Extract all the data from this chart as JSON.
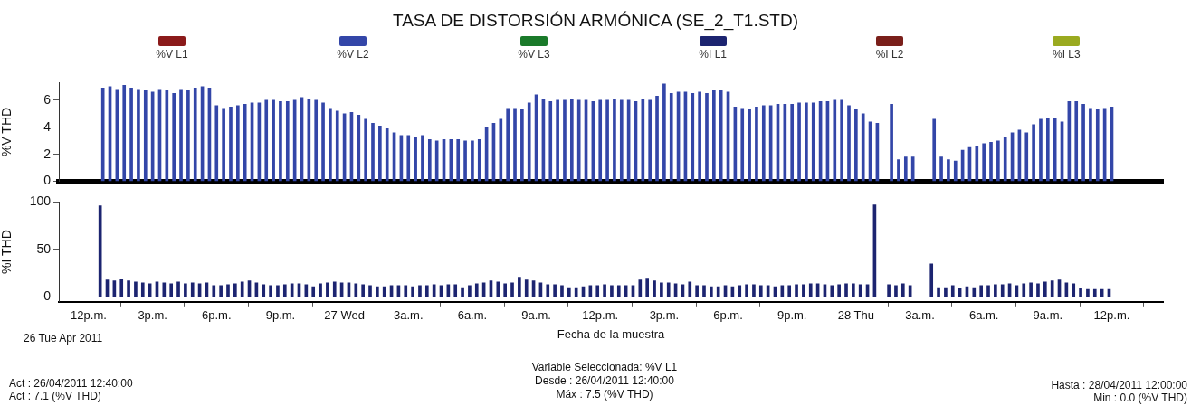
{
  "chart_data": [
    {
      "type": "bar",
      "title": "TASA DE DISTORSIÓN ARMÓNICA (SE_2_T1.STD)",
      "ylabel": "%V THD",
      "legend": "top",
      "tick_labels": "y",
      "xlim": [
        "2011-04-26T10:36",
        "2011-04-28T14:24"
      ],
      "xticks": [
        {
          "value": "2011-04-26T12:00",
          "label": null
        },
        {
          "value": "2011-04-26T15:00",
          "label": null
        },
        {
          "value": "2011-04-26T18:00",
          "label": null
        },
        {
          "value": "2011-04-26T21:00",
          "label": null
        },
        {
          "value": "2011-04-27T00:00",
          "label": null
        },
        {
          "value": "2011-04-27T03:00",
          "label": null
        },
        {
          "value": "2011-04-27T06:00",
          "label": null
        },
        {
          "value": "2011-04-27T09:00",
          "label": null
        },
        {
          "value": "2011-04-27T12:00",
          "label": null
        },
        {
          "value": "2011-04-27T15:00",
          "label": null
        },
        {
          "value": "2011-04-27T18:00",
          "label": null
        },
        {
          "value": "2011-04-27T21:00",
          "label": null
        },
        {
          "value": "2011-04-28T00:00",
          "label": null
        },
        {
          "value": "2011-04-28T03:00",
          "label": null
        },
        {
          "value": "2011-04-28T06:00",
          "label": null
        },
        {
          "value": "2011-04-28T09:00",
          "label": null
        },
        {
          "value": "2011-04-28T12:00",
          "label": null
        }
      ],
      "ylim": [
        0,
        7.3
      ],
      "yticks": [
        0,
        2,
        4,
        6
      ],
      "x": [
        "2011-04-26T12:40",
        "2011-04-26T13:00",
        "2011-04-26T13:20",
        "2011-04-26T13:40",
        "2011-04-26T14:00",
        "2011-04-26T14:20",
        "2011-04-26T14:40",
        "2011-04-26T15:00",
        "2011-04-26T15:20",
        "2011-04-26T15:40",
        "2011-04-26T16:00",
        "2011-04-26T16:20",
        "2011-04-26T16:40",
        "2011-04-26T17:00",
        "2011-04-26T17:20",
        "2011-04-26T17:40",
        "2011-04-26T18:00",
        "2011-04-26T18:20",
        "2011-04-26T18:40",
        "2011-04-26T19:00",
        "2011-04-26T19:20",
        "2011-04-26T19:40",
        "2011-04-26T20:00",
        "2011-04-26T20:20",
        "2011-04-26T20:40",
        "2011-04-26T21:00",
        "2011-04-26T21:20",
        "2011-04-26T21:40",
        "2011-04-26T22:00",
        "2011-04-26T22:20",
        "2011-04-26T22:40",
        "2011-04-26T23:00",
        "2011-04-26T23:20",
        "2011-04-26T23:40",
        "2011-04-27T00:00",
        "2011-04-27T00:20",
        "2011-04-27T00:40",
        "2011-04-27T01:00",
        "2011-04-27T01:20",
        "2011-04-27T01:40",
        "2011-04-27T02:00",
        "2011-04-27T02:20",
        "2011-04-27T02:40",
        "2011-04-27T03:00",
        "2011-04-27T03:20",
        "2011-04-27T03:40",
        "2011-04-27T04:00",
        "2011-04-27T04:20",
        "2011-04-27T04:40",
        "2011-04-27T05:00",
        "2011-04-27T05:20",
        "2011-04-27T05:40",
        "2011-04-27T06:00",
        "2011-04-27T06:20",
        "2011-04-27T06:40",
        "2011-04-27T07:00",
        "2011-04-27T07:20",
        "2011-04-27T07:40",
        "2011-04-27T08:00",
        "2011-04-27T08:20",
        "2011-04-27T08:40",
        "2011-04-27T09:00",
        "2011-04-27T09:20",
        "2011-04-27T09:40",
        "2011-04-27T10:00",
        "2011-04-27T10:20",
        "2011-04-27T10:40",
        "2011-04-27T11:00",
        "2011-04-27T11:20",
        "2011-04-27T11:40",
        "2011-04-27T12:00",
        "2011-04-27T12:20",
        "2011-04-27T12:40",
        "2011-04-27T13:00",
        "2011-04-27T13:20",
        "2011-04-27T13:40",
        "2011-04-27T14:00",
        "2011-04-27T14:20",
        "2011-04-27T14:40",
        "2011-04-27T15:00",
        "2011-04-27T15:20",
        "2011-04-27T15:40",
        "2011-04-27T16:00",
        "2011-04-27T16:20",
        "2011-04-27T16:40",
        "2011-04-27T17:00",
        "2011-04-27T17:20",
        "2011-04-27T17:40",
        "2011-04-27T18:00",
        "2011-04-27T18:20",
        "2011-04-27T18:40",
        "2011-04-27T19:00",
        "2011-04-27T19:20",
        "2011-04-27T19:40",
        "2011-04-27T20:00",
        "2011-04-27T20:20",
        "2011-04-27T20:40",
        "2011-04-27T21:00",
        "2011-04-27T21:20",
        "2011-04-27T21:40",
        "2011-04-27T22:00",
        "2011-04-27T22:20",
        "2011-04-27T22:40",
        "2011-04-27T23:00",
        "2011-04-27T23:20",
        "2011-04-27T23:40",
        "2011-04-28T00:00",
        "2011-04-28T00:20",
        "2011-04-28T00:40",
        "2011-04-28T01:00",
        "2011-04-28T01:20",
        "2011-04-28T01:40",
        "2011-04-28T02:00",
        "2011-04-28T02:20",
        "2011-04-28T02:40",
        "2011-04-28T03:00",
        "2011-04-28T03:20",
        "2011-04-28T03:40",
        "2011-04-28T04:00",
        "2011-04-28T04:20",
        "2011-04-28T04:40",
        "2011-04-28T05:00",
        "2011-04-28T05:20",
        "2011-04-28T05:40",
        "2011-04-28T06:00",
        "2011-04-28T06:20",
        "2011-04-28T06:40",
        "2011-04-28T07:00",
        "2011-04-28T07:20",
        "2011-04-28T07:40",
        "2011-04-28T08:00",
        "2011-04-28T08:20",
        "2011-04-28T08:40",
        "2011-04-28T09:00",
        "2011-04-28T09:20",
        "2011-04-28T09:40",
        "2011-04-28T10:00",
        "2011-04-28T10:20",
        "2011-04-28T10:40",
        "2011-04-28T11:00",
        "2011-04-28T11:20",
        "2011-04-28T11:40",
        "2011-04-28T12:00"
      ],
      "series": [
        {
          "name": "%V L1",
          "color": "#8b1a1a",
          "values": [
            null,
            null,
            null,
            null,
            null,
            null,
            null,
            null,
            null,
            null,
            null,
            null,
            null,
            null,
            null,
            null,
            null,
            null,
            null,
            null,
            null,
            null,
            null,
            null,
            null,
            null,
            null,
            null,
            null,
            null,
            null,
            null,
            null,
            null,
            null,
            null,
            null,
            null,
            null,
            null,
            null,
            null,
            null,
            null,
            null,
            null,
            null,
            null,
            null,
            null,
            null,
            null,
            null,
            null,
            null,
            null,
            null,
            null,
            null,
            null,
            null,
            null,
            null,
            null,
            null,
            null,
            null,
            null,
            null,
            null,
            null,
            null,
            null,
            null,
            null,
            null,
            null,
            null,
            null,
            null,
            null,
            null,
            null,
            null,
            null,
            null,
            null,
            null,
            null,
            null,
            null,
            null,
            null,
            null,
            null,
            null,
            null,
            null,
            null,
            null,
            null,
            null,
            null,
            null,
            null,
            null,
            null,
            null,
            null,
            null,
            null,
            null,
            null,
            null,
            null,
            null,
            null,
            null,
            null,
            null,
            null,
            null,
            null,
            null,
            null,
            null,
            null,
            null,
            null,
            null,
            null,
            null,
            null,
            null,
            null,
            null,
            null,
            null,
            null,
            null,
            null,
            null,
            null
          ]
        },
        {
          "name": "%V L2",
          "color": "#3346a8",
          "values": [
            6.9,
            7.0,
            6.8,
            7.1,
            6.9,
            6.8,
            6.7,
            6.6,
            6.8,
            6.7,
            6.5,
            6.8,
            6.7,
            6.9,
            7.0,
            6.9,
            5.6,
            5.4,
            5.5,
            5.6,
            5.7,
            5.8,
            5.8,
            6.0,
            6.0,
            5.9,
            5.9,
            6.0,
            6.2,
            6.1,
            6.0,
            5.8,
            5.4,
            5.2,
            5.0,
            5.1,
            4.9,
            4.6,
            4.3,
            4.1,
            3.9,
            3.6,
            3.4,
            3.4,
            3.3,
            3.4,
            3.1,
            3.0,
            3.1,
            3.1,
            3.1,
            3.0,
            3.0,
            3.1,
            4.0,
            4.3,
            4.6,
            5.4,
            5.4,
            5.3,
            5.8,
            6.4,
            6.1,
            5.9,
            6.0,
            6.0,
            6.1,
            6.0,
            6.0,
            5.9,
            6.0,
            6.0,
            6.1,
            6.0,
            6.0,
            5.9,
            6.1,
            6.0,
            6.3,
            7.2,
            6.5,
            6.6,
            6.6,
            6.5,
            6.6,
            6.5,
            6.7,
            6.7,
            6.6,
            5.5,
            5.4,
            5.3,
            5.5,
            5.6,
            5.6,
            5.7,
            5.7,
            5.7,
            5.8,
            5.8,
            5.8,
            5.9,
            5.9,
            6.0,
            6.0,
            5.6,
            5.3,
            5.0,
            4.4,
            4.3,
            null,
            5.7,
            1.6,
            1.8,
            1.8,
            null,
            null,
            4.6,
            1.8,
            1.6,
            1.5,
            2.3,
            2.5,
            2.6,
            2.8,
            2.9,
            3.0,
            3.3,
            3.6,
            3.8,
            3.6,
            4.2,
            4.6,
            4.7,
            4.7,
            4.4,
            5.9,
            5.9,
            5.7,
            5.4,
            5.3,
            5.4,
            5.5
          ]
        },
        {
          "name": "%V L3",
          "color": "#1a7a2a",
          "values": [
            null,
            null,
            null,
            null,
            null,
            null,
            null,
            null,
            null,
            null,
            null,
            null,
            null,
            null,
            null,
            null,
            null,
            null,
            null,
            null,
            null,
            null,
            null,
            null,
            null,
            null,
            null,
            null,
            null,
            null,
            null,
            null,
            null,
            null,
            null,
            null,
            null,
            null,
            null,
            null,
            null,
            null,
            null,
            null,
            null,
            null,
            null,
            null,
            null,
            null,
            null,
            null,
            null,
            null,
            null,
            null,
            null,
            null,
            null,
            null,
            null,
            null,
            null,
            null,
            null,
            null,
            null,
            null,
            null,
            null,
            null,
            null,
            null,
            null,
            null,
            null,
            null,
            null,
            null,
            null,
            null,
            null,
            null,
            null,
            null,
            null,
            null,
            null,
            null,
            null,
            null,
            null,
            null,
            null,
            null,
            null,
            null,
            null,
            null,
            null,
            null,
            null,
            null,
            null,
            null,
            null,
            null,
            null,
            null,
            null,
            null,
            null,
            null,
            null,
            null,
            null,
            null,
            null,
            null,
            null,
            null,
            null,
            null,
            null,
            null,
            null,
            null,
            null,
            null,
            null,
            null,
            null,
            null,
            null,
            null,
            null,
            null,
            null,
            null,
            null,
            null,
            null,
            null
          ]
        }
      ]
    },
    {
      "type": "bar",
      "xlabel": "Fecha de la muestra",
      "ylabel": "%I THD",
      "legend": "top",
      "xlim": [
        "2011-04-26T10:36",
        "2011-04-28T14:24"
      ],
      "xticks": [
        {
          "value": "2011-04-26T12:00",
          "label": "12p.m."
        },
        {
          "value": "2011-04-26T15:00",
          "label": "3p.m."
        },
        {
          "value": "2011-04-26T18:00",
          "label": "6p.m."
        },
        {
          "value": "2011-04-26T21:00",
          "label": "9p.m."
        },
        {
          "value": "2011-04-27T00:00",
          "label": "27 Wed"
        },
        {
          "value": "2011-04-27T03:00",
          "label": "3a.m."
        },
        {
          "value": "2011-04-27T06:00",
          "label": "6a.m."
        },
        {
          "value": "2011-04-27T09:00",
          "label": "9a.m."
        },
        {
          "value": "2011-04-27T12:00",
          "label": "12p.m."
        },
        {
          "value": "2011-04-27T15:00",
          "label": "3p.m."
        },
        {
          "value": "2011-04-27T18:00",
          "label": "6p.m."
        },
        {
          "value": "2011-04-27T21:00",
          "label": "9p.m."
        },
        {
          "value": "2011-04-28T00:00",
          "label": "28 Thu"
        },
        {
          "value": "2011-04-28T03:00",
          "label": "3a.m."
        },
        {
          "value": "2011-04-28T06:00",
          "label": "6a.m."
        },
        {
          "value": "2011-04-28T09:00",
          "label": "9a.m."
        },
        {
          "value": "2011-04-28T12:00",
          "label": "12p.m."
        }
      ],
      "ylim": [
        -5,
        100
      ],
      "yticks": [
        0,
        50,
        100
      ],
      "x": [
        "2011-04-26T12:40",
        "2011-04-26T13:00",
        "2011-04-26T13:20",
        "2011-04-26T13:40",
        "2011-04-26T14:00",
        "2011-04-26T14:20",
        "2011-04-26T14:40",
        "2011-04-26T15:00",
        "2011-04-26T15:20",
        "2011-04-26T15:40",
        "2011-04-26T16:00",
        "2011-04-26T16:20",
        "2011-04-26T16:40",
        "2011-04-26T17:00",
        "2011-04-26T17:20",
        "2011-04-26T17:40",
        "2011-04-26T18:00",
        "2011-04-26T18:20",
        "2011-04-26T18:40",
        "2011-04-26T19:00",
        "2011-04-26T19:20",
        "2011-04-26T19:40",
        "2011-04-26T20:00",
        "2011-04-26T20:20",
        "2011-04-26T20:40",
        "2011-04-26T21:00",
        "2011-04-26T21:20",
        "2011-04-26T21:40",
        "2011-04-26T22:00",
        "2011-04-26T22:20",
        "2011-04-26T22:40",
        "2011-04-26T23:00",
        "2011-04-26T23:20",
        "2011-04-26T23:40",
        "2011-04-27T00:00",
        "2011-04-27T00:20",
        "2011-04-27T00:40",
        "2011-04-27T01:00",
        "2011-04-27T01:20",
        "2011-04-27T01:40",
        "2011-04-27T02:00",
        "2011-04-27T02:20",
        "2011-04-27T02:40",
        "2011-04-27T03:00",
        "2011-04-27T03:20",
        "2011-04-27T03:40",
        "2011-04-27T04:00",
        "2011-04-27T04:20",
        "2011-04-27T04:40",
        "2011-04-27T05:00",
        "2011-04-27T05:20",
        "2011-04-27T05:40",
        "2011-04-27T06:00",
        "2011-04-27T06:20",
        "2011-04-27T06:40",
        "2011-04-27T07:00",
        "2011-04-27T07:20",
        "2011-04-27T07:40",
        "2011-04-27T08:00",
        "2011-04-27T08:20",
        "2011-04-27T08:40",
        "2011-04-27T09:00",
        "2011-04-27T09:20",
        "2011-04-27T09:40",
        "2011-04-27T10:00",
        "2011-04-27T10:20",
        "2011-04-27T10:40",
        "2011-04-27T11:00",
        "2011-04-27T11:20",
        "2011-04-27T11:40",
        "2011-04-27T12:00",
        "2011-04-27T12:20",
        "2011-04-27T12:40",
        "2011-04-27T13:00",
        "2011-04-27T13:20",
        "2011-04-27T13:40",
        "2011-04-27T14:00",
        "2011-04-27T14:20",
        "2011-04-27T14:40",
        "2011-04-27T15:00",
        "2011-04-27T15:20",
        "2011-04-27T15:40",
        "2011-04-27T16:00",
        "2011-04-27T16:20",
        "2011-04-27T16:40",
        "2011-04-27T17:00",
        "2011-04-27T17:20",
        "2011-04-27T17:40",
        "2011-04-27T18:00",
        "2011-04-27T18:20",
        "2011-04-27T18:40",
        "2011-04-27T19:00",
        "2011-04-27T19:20",
        "2011-04-27T19:40",
        "2011-04-27T20:00",
        "2011-04-27T20:20",
        "2011-04-27T20:40",
        "2011-04-27T21:00",
        "2011-04-27T21:20",
        "2011-04-27T21:40",
        "2011-04-27T22:00",
        "2011-04-27T22:20",
        "2011-04-27T22:40",
        "2011-04-27T23:00",
        "2011-04-27T23:20",
        "2011-04-27T23:40",
        "2011-04-28T00:00",
        "2011-04-28T00:20",
        "2011-04-28T00:40",
        "2011-04-28T01:00",
        "2011-04-28T01:20",
        "2011-04-28T01:40",
        "2011-04-28T02:00",
        "2011-04-28T02:20",
        "2011-04-28T02:40",
        "2011-04-28T03:00",
        "2011-04-28T03:20",
        "2011-04-28T03:40",
        "2011-04-28T04:00",
        "2011-04-28T04:20",
        "2011-04-28T04:40",
        "2011-04-28T05:00",
        "2011-04-28T05:20",
        "2011-04-28T05:40",
        "2011-04-28T06:00",
        "2011-04-28T06:20",
        "2011-04-28T06:40",
        "2011-04-28T07:00",
        "2011-04-28T07:20",
        "2011-04-28T07:40",
        "2011-04-28T08:00",
        "2011-04-28T08:20",
        "2011-04-28T08:40",
        "2011-04-28T09:00",
        "2011-04-28T09:20",
        "2011-04-28T09:40",
        "2011-04-28T10:00",
        "2011-04-28T10:20",
        "2011-04-28T10:40",
        "2011-04-28T11:00",
        "2011-04-28T11:20",
        "2011-04-28T11:40",
        "2011-04-28T12:00"
      ],
      "series": [
        {
          "name": "%I L1",
          "color": "#1c2470",
          "values": [
            96,
            18,
            17,
            19,
            17,
            16,
            15,
            14,
            16,
            15,
            14,
            16,
            14,
            15,
            14,
            15,
            12,
            12,
            13,
            14,
            16,
            17,
            15,
            13,
            12,
            12,
            13,
            14,
            14,
            13,
            11,
            14,
            15,
            16,
            15,
            15,
            14,
            13,
            12,
            11,
            11,
            12,
            12,
            12,
            11,
            12,
            12,
            13,
            12,
            13,
            13,
            10,
            12,
            14,
            15,
            17,
            16,
            14,
            15,
            21,
            18,
            17,
            15,
            13,
            13,
            12,
            10,
            10,
            11,
            12,
            12,
            13,
            12,
            12,
            12,
            12,
            18,
            20,
            17,
            15,
            15,
            14,
            13,
            16,
            12,
            12,
            11,
            11,
            12,
            11,
            12,
            13,
            13,
            12,
            12,
            11,
            12,
            12,
            13,
            13,
            14,
            14,
            13,
            12,
            13,
            14,
            14,
            13,
            13,
            97,
            null,
            13,
            12,
            14,
            12,
            null,
            null,
            35,
            10,
            10,
            12,
            9,
            11,
            10,
            12,
            12,
            13,
            13,
            14,
            12,
            14,
            15,
            14,
            16,
            17,
            18,
            15,
            14,
            9,
            8,
            8,
            8,
            8
          ]
        },
        {
          "name": "%I L2",
          "color": "#7a1f1a",
          "values": [
            null,
            null,
            null,
            null,
            null,
            null,
            null,
            null,
            null,
            null,
            null,
            null,
            null,
            null,
            null,
            null,
            null,
            null,
            null,
            null,
            null,
            null,
            null,
            null,
            null,
            null,
            null,
            null,
            null,
            null,
            null,
            null,
            null,
            null,
            null,
            null,
            null,
            null,
            null,
            null,
            null,
            null,
            null,
            null,
            null,
            null,
            null,
            null,
            null,
            null,
            null,
            null,
            null,
            null,
            null,
            null,
            null,
            null,
            null,
            null,
            null,
            null,
            null,
            null,
            null,
            null,
            null,
            null,
            null,
            null,
            null,
            null,
            null,
            null,
            null,
            null,
            null,
            null,
            null,
            null,
            null,
            null,
            null,
            null,
            null,
            null,
            null,
            null,
            null,
            null,
            null,
            null,
            null,
            null,
            null,
            null,
            null,
            null,
            null,
            null,
            null,
            null,
            null,
            null,
            null,
            null,
            null,
            null,
            null,
            null,
            null,
            null,
            null,
            null,
            null,
            null,
            null,
            null,
            null,
            null,
            null,
            null,
            null,
            null,
            null,
            null,
            null,
            null,
            null,
            null,
            null,
            null,
            null,
            null,
            null,
            null,
            null,
            null,
            null,
            null,
            null,
            null,
            null
          ]
        },
        {
          "name": "%I L3",
          "color": "#9aaa20",
          "values": [
            null,
            null,
            null,
            null,
            null,
            null,
            null,
            null,
            null,
            null,
            null,
            null,
            null,
            null,
            null,
            null,
            null,
            null,
            null,
            null,
            null,
            null,
            null,
            null,
            null,
            null,
            null,
            null,
            null,
            null,
            null,
            null,
            null,
            null,
            null,
            null,
            null,
            null,
            null,
            null,
            null,
            null,
            null,
            null,
            null,
            null,
            null,
            null,
            null,
            null,
            null,
            null,
            null,
            null,
            null,
            null,
            null,
            null,
            null,
            null,
            null,
            null,
            null,
            null,
            null,
            null,
            null,
            null,
            null,
            null,
            null,
            null,
            null,
            null,
            null,
            null,
            null,
            null,
            null,
            null,
            null,
            null,
            null,
            null,
            null,
            null,
            null,
            null,
            null,
            null,
            null,
            null,
            null,
            null,
            null,
            null,
            null,
            null,
            null,
            null,
            null,
            null,
            null,
            null,
            null,
            null,
            null,
            null,
            null,
            null,
            null,
            null,
            null,
            null,
            null,
            null,
            null,
            null,
            null,
            null,
            null,
            null,
            null,
            null,
            null,
            null,
            null,
            null,
            null,
            null,
            null,
            null,
            null,
            null,
            null,
            null,
            null,
            null,
            null,
            null,
            null,
            null,
            null
          ]
        }
      ],
      "annotations": [
        "26 Tue Apr 2011",
        "Act : 26/04/2011 12:40:00",
        "Act : 7.1 (%V THD)",
        "Variable Seleccionada: %V L1",
        "Desde : 26/04/2011 12:40:00",
        "Máx : 7.5 (%V THD)",
        "Hasta : 28/04/2011 12:00:00",
        "Min : 0.0 (%V THD)"
      ]
    }
  ]
}
